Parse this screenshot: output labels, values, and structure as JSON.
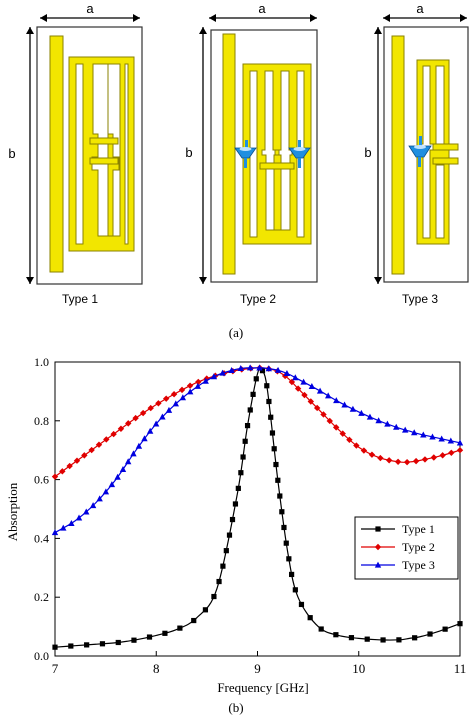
{
  "panel_a": {
    "caption": "(a)",
    "dimension_width_label": "a",
    "dimension_height_label": "b",
    "types": [
      {
        "label": "Type 1",
        "has_varactors": false,
        "varactor_count": 0
      },
      {
        "label": "Type 2",
        "has_varactors": true,
        "varactor_count": 2
      },
      {
        "label": "Type 3",
        "has_varactors": true,
        "varactor_count": 1
      }
    ],
    "colors": {
      "metal": "#f2e600",
      "metal_edge": "#8a8200",
      "varactor": "#1f8fe0",
      "substrate_edge": "#333333"
    }
  },
  "panel_b": {
    "caption": "(b)",
    "chart_data": {
      "type": "line",
      "xlabel": "Frequency [GHz]",
      "ylabel": "Absorption",
      "xlim": [
        7,
        11
      ],
      "ylim": [
        0.0,
        1.0
      ],
      "xticks": [
        7,
        8,
        9,
        10,
        11
      ],
      "yticks": [
        0.0,
        0.2,
        0.4,
        0.6,
        0.8,
        1.0
      ],
      "xtick_labels": [
        "7",
        "8",
        "9",
        "10",
        "11"
      ],
      "ytick_labels": [
        "0.0",
        "0.2",
        "0.4",
        "0.6",
        "0.8",
        "1.0"
      ],
      "grid": false,
      "legend_position": "bottom-right",
      "x": [
        7.0,
        7.2,
        7.4,
        7.6,
        7.8,
        8.0,
        8.2,
        8.4,
        8.6,
        8.8,
        8.9,
        9.0,
        9.05,
        9.1,
        9.2,
        9.3,
        9.4,
        9.6,
        9.8,
        10.0,
        10.2,
        10.4,
        10.5,
        10.6,
        10.8,
        11.0
      ],
      "series": [
        {
          "name": "Type 1",
          "color": "#000000",
          "marker": "square",
          "values": [
            0.03,
            0.035,
            0.04,
            0.045,
            0.055,
            0.07,
            0.09,
            0.13,
            0.23,
            0.55,
            0.78,
            0.96,
            0.97,
            0.9,
            0.6,
            0.35,
            0.2,
            0.1,
            0.07,
            0.06,
            0.055,
            0.055,
            0.06,
            0.065,
            0.085,
            0.11
          ]
        },
        {
          "name": "Type 2",
          "color": "#e00000",
          "marker": "diamond",
          "values": [
            0.61,
            0.66,
            0.71,
            0.76,
            0.81,
            0.855,
            0.895,
            0.93,
            0.955,
            0.972,
            0.977,
            0.98,
            0.98,
            0.978,
            0.968,
            0.945,
            0.91,
            0.84,
            0.77,
            0.71,
            0.675,
            0.66,
            0.66,
            0.665,
            0.68,
            0.7
          ]
        },
        {
          "name": "Type 3",
          "color": "#0000e0",
          "marker": "triangle",
          "values": [
            0.42,
            0.46,
            0.52,
            0.6,
            0.7,
            0.79,
            0.86,
            0.915,
            0.955,
            0.976,
            0.98,
            0.98,
            0.98,
            0.978,
            0.972,
            0.96,
            0.942,
            0.905,
            0.865,
            0.83,
            0.8,
            0.775,
            0.765,
            0.755,
            0.74,
            0.725
          ]
        }
      ]
    }
  }
}
